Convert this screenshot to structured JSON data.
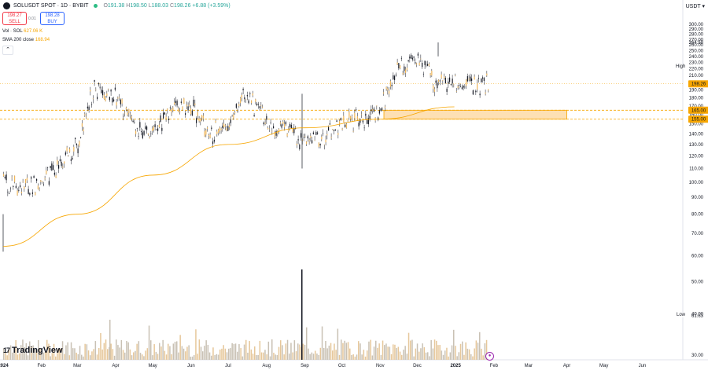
{
  "header": {
    "symbol": "SOLUSDT SPOT · 1D · BYBIT",
    "open_label": "O",
    "open": "191.38",
    "high_label": "H",
    "high": "198.50",
    "low_label": "L",
    "low": "188.03",
    "close_label": "C",
    "close": "198.26",
    "change": "+6.88 (+3.59%)"
  },
  "trade": {
    "sell_price": "198.27",
    "sell_label": "SELL",
    "spread": "0.01",
    "buy_price": "198.28",
    "buy_label": "BUY"
  },
  "indicators": {
    "vol_name": "Vol · SOL",
    "vol_value": "627.06 K",
    "sma_name": "SMA 200 close",
    "sma_value": "168.94"
  },
  "price_axis": {
    "currency": "USDT",
    "ticks": [
      "300.00",
      "290.00",
      "280.00",
      "270.00",
      "260.00",
      "250.00",
      "240.00",
      "230.00",
      "220.00",
      "210.00",
      "200.00",
      "190.00",
      "180.00",
      "170.00",
      "160.00",
      "150.00",
      "140.00",
      "130.00",
      "120.00",
      "110.00",
      "100.00",
      "90.00",
      "80.00",
      "70.00",
      "60.00",
      "50.00",
      "40.00",
      "30.00"
    ],
    "high_label": "High",
    "high_value": "264.50",
    "low_label": "Low",
    "low_value": "61.63",
    "last_price": "198.26",
    "level_upper": "165.00",
    "level_lower": "155.00"
  },
  "time_axis": {
    "labels": [
      "2024",
      "Feb",
      "Mar",
      "Apr",
      "May",
      "Jun",
      "Jul",
      "Aug",
      "Sep",
      "Oct",
      "Nov",
      "Dec",
      "2025",
      "Feb",
      "Mar",
      "Apr",
      "May",
      "Jun"
    ]
  },
  "branding": "TradingView",
  "colors": {
    "up": "#26a69a",
    "down": "#ef5350",
    "candle_body": "#f0b75a",
    "candle_dark": "#131722",
    "sma": "#f7a600",
    "zone_fill": "#fde0b4",
    "zone_border": "#f7a600",
    "level_line": "#f7a600",
    "volume": "#e6c79a"
  },
  "chart_data": {
    "type": "candlestick",
    "x_range": [
      "2024-01-01",
      "2025-06-30"
    ],
    "y_range": [
      30,
      305
    ],
    "y_scale": "log",
    "horizontal_levels": [
      165.0,
      155.0,
      198.26
    ],
    "zone": {
      "from": 155.0,
      "to": 165.0,
      "start": "2024-11-04",
      "end": "2025-04-01"
    },
    "monthly_close": [
      {
        "date": "2024-01-01",
        "price": 101
      },
      {
        "date": "2024-01-15",
        "price": 95
      },
      {
        "date": "2024-02-01",
        "price": 100
      },
      {
        "date": "2024-02-15",
        "price": 112
      },
      {
        "date": "2024-03-01",
        "price": 130
      },
      {
        "date": "2024-03-15",
        "price": 195
      },
      {
        "date": "2024-04-01",
        "price": 180
      },
      {
        "date": "2024-04-15",
        "price": 145
      },
      {
        "date": "2024-05-01",
        "price": 140
      },
      {
        "date": "2024-05-15",
        "price": 165
      },
      {
        "date": "2024-06-01",
        "price": 170
      },
      {
        "date": "2024-06-15",
        "price": 140
      },
      {
        "date": "2024-07-01",
        "price": 145
      },
      {
        "date": "2024-07-15",
        "price": 185
      },
      {
        "date": "2024-08-01",
        "price": 150
      },
      {
        "date": "2024-08-15",
        "price": 145
      },
      {
        "date": "2024-09-01",
        "price": 130
      },
      {
        "date": "2024-09-15",
        "price": 135
      },
      {
        "date": "2024-10-01",
        "price": 150
      },
      {
        "date": "2024-10-15",
        "price": 155
      },
      {
        "date": "2024-11-01",
        "price": 165
      },
      {
        "date": "2024-11-15",
        "price": 225
      },
      {
        "date": "2024-12-01",
        "price": 240
      },
      {
        "date": "2024-12-15",
        "price": 200
      },
      {
        "date": "2024-12-31",
        "price": 198
      }
    ],
    "sma200": [
      {
        "date": "2024-01-01",
        "price": 64
      },
      {
        "date": "2024-03-01",
        "price": 80
      },
      {
        "date": "2024-05-01",
        "price": 105
      },
      {
        "date": "2024-07-01",
        "price": 130
      },
      {
        "date": "2024-09-01",
        "price": 146
      },
      {
        "date": "2024-11-01",
        "price": 155
      },
      {
        "date": "2024-12-31",
        "price": 168.94
      }
    ]
  }
}
